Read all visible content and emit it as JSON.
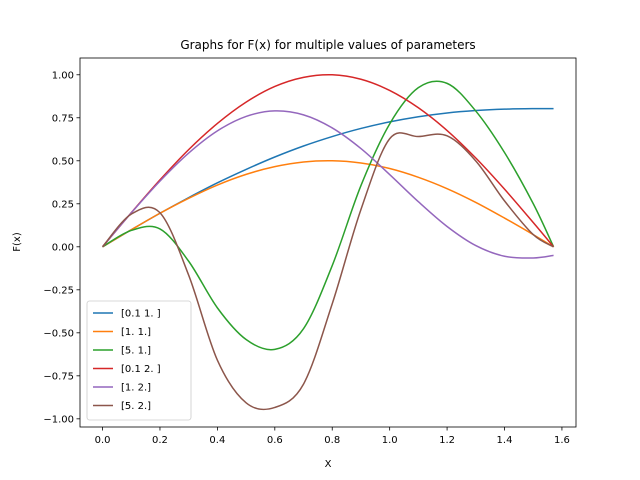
{
  "chart_data": {
    "type": "line",
    "title": "Graphs for F(x) for multiple values of parameters",
    "xlabel": "X",
    "ylabel": "F(x)",
    "xlim": [
      -0.0785,
      1.649
    ],
    "ylim": [
      -1.0475,
      1.0975
    ],
    "xticks": [
      0.0,
      0.2,
      0.4,
      0.6,
      0.8,
      1.0,
      1.2,
      1.4,
      1.6
    ],
    "xtick_labels": [
      "0.0",
      "0.2",
      "0.4",
      "0.6",
      "0.8",
      "1.0",
      "1.2",
      "1.4",
      "1.6"
    ],
    "yticks": [
      -1.0,
      -0.75,
      -0.5,
      -0.25,
      0.0,
      0.25,
      0.5,
      0.75,
      1.0
    ],
    "ytick_labels": [
      "−1.00",
      "−0.75",
      "−0.50",
      "−0.25",
      "0.00",
      "0.25",
      "0.50",
      "0.75",
      "1.00"
    ],
    "grid": false,
    "legend_position": "lower-left",
    "x": [
      0.0,
      0.1,
      0.2,
      0.3,
      0.4,
      0.5,
      0.6,
      0.7,
      0.8,
      0.9,
      1.0,
      1.1,
      1.2,
      1.3,
      1.4,
      1.5,
      1.5708
    ],
    "series": [
      {
        "name": "[0.1 1. ]",
        "color": "#1f77b4",
        "values": [
          0.0,
          0.099,
          0.195,
          0.286,
          0.372,
          0.45,
          0.522,
          0.586,
          0.641,
          0.688,
          0.726,
          0.756,
          0.778,
          0.792,
          0.8,
          0.803,
          0.803
        ]
      },
      {
        "name": "[1. 1.]",
        "color": "#ff7f0e",
        "values": [
          0.0,
          0.099,
          0.195,
          0.282,
          0.359,
          0.421,
          0.466,
          0.493,
          0.5,
          0.487,
          0.455,
          0.404,
          0.338,
          0.258,
          0.167,
          0.071,
          0.0
        ]
      },
      {
        "name": "[5. 1.]",
        "color": "#2ca02c",
        "values": [
          0.0,
          0.095,
          0.104,
          -0.084,
          -0.355,
          -0.539,
          -0.596,
          -0.476,
          -0.109,
          0.356,
          0.714,
          0.925,
          0.95,
          0.789,
          0.548,
          0.251,
          0.0
        ]
      },
      {
        "name": "[0.1 2. ]",
        "color": "#d62728",
        "values": [
          0.0,
          0.198,
          0.389,
          0.565,
          0.717,
          0.841,
          0.932,
          0.985,
          1.0,
          0.974,
          0.909,
          0.808,
          0.676,
          0.516,
          0.335,
          0.141,
          0.0
        ]
      },
      {
        "name": "[1. 2.]",
        "color": "#9467bd",
        "values": [
          0.0,
          0.197,
          0.382,
          0.545,
          0.674,
          0.758,
          0.79,
          0.767,
          0.691,
          0.571,
          0.42,
          0.262,
          0.118,
          0.007,
          -0.055,
          -0.065,
          -0.05
        ]
      },
      {
        "name": "[5. 2.]",
        "color": "#8c564b",
        "values": [
          0.0,
          0.19,
          0.198,
          -0.165,
          -0.659,
          -0.907,
          -0.934,
          -0.798,
          -0.331,
          0.217,
          0.628,
          0.641,
          0.645,
          0.499,
          0.267,
          0.071,
          0.0
        ]
      }
    ]
  }
}
